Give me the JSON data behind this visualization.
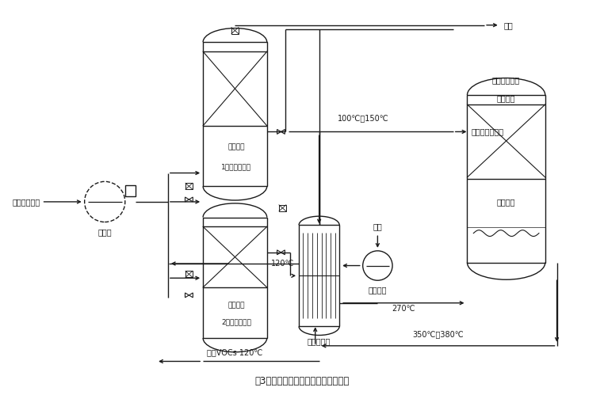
{
  "title": "图3吸附再生及催化氧化组合工艺流程",
  "bg_color": "#ffffff",
  "line_color": "#1a1a1a",
  "fs": 7.0,
  "fs_title": 8.5,
  "labels": {
    "wet_elec": "湿式静电装置",
    "main_fan": "主风机",
    "active_c1": "活性炭层",
    "device1": "1号活性炭装置",
    "active_c2": "活性炭层",
    "device2": "2号活性炭装置",
    "vocs": "浓缩VOCs 120℃",
    "regen_hx": "再生换热器",
    "regen_fan": "再生风机",
    "air": "空气",
    "t120": "120℃",
    "t270": "270℃",
    "t350": "350℃～380℃",
    "t100": "100℃～150℃",
    "cat_dev": "催化氧化装置",
    "cat_layer": "催化剂层",
    "aux_heat": "辅助升温",
    "fixed_hx": "定型废气换热器",
    "flue": "烟囱"
  }
}
